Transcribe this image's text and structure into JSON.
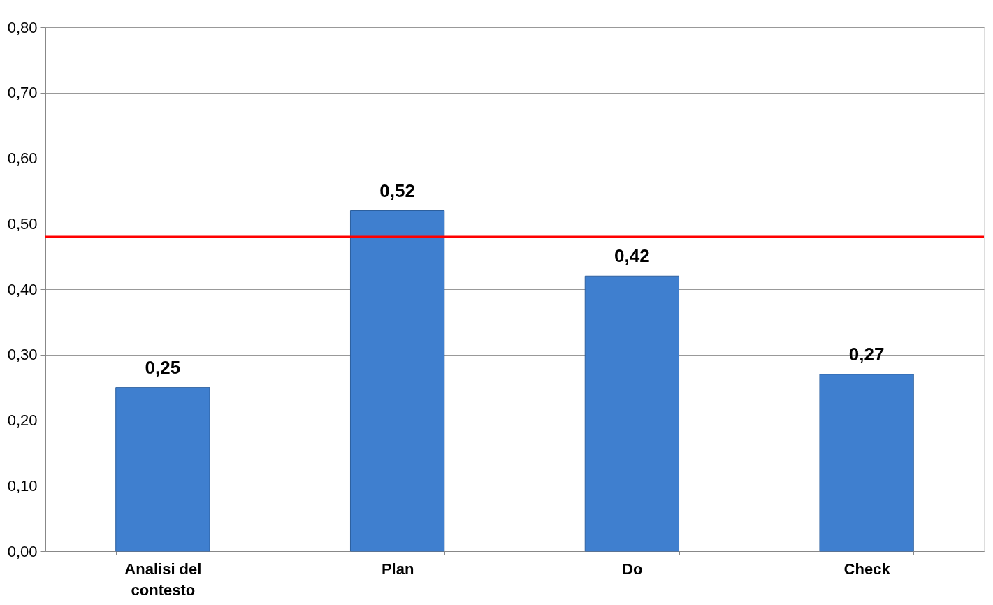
{
  "chart_data": {
    "type": "bar",
    "categories": [
      "Analisi del contesto",
      "Plan",
      "Do",
      "Check"
    ],
    "values": [
      0.25,
      0.52,
      0.42,
      0.27
    ],
    "color": "#3f7fcf",
    "value_labels": [
      "0,25",
      "0,52",
      "0,42",
      "0,27"
    ],
    "ylim": [
      0,
      0.8
    ],
    "yticks": [
      {
        "value": 0,
        "label": "0,00"
      },
      {
        "value": 0.1,
        "label": "0,10"
      },
      {
        "value": 0.2,
        "label": "0,20"
      },
      {
        "value": 0.3,
        "label": "0,30"
      },
      {
        "value": 0.4,
        "label": "0,40"
      },
      {
        "value": 0.5,
        "label": "0,50"
      },
      {
        "value": 0.6,
        "label": "0,60"
      },
      {
        "value": 0.7,
        "label": "0,70"
      },
      {
        "value": 0.8,
        "label": "0,80"
      }
    ],
    "ref_lines": [
      {
        "axis": "y",
        "value": 0.48,
        "color": "#ff0000"
      }
    ],
    "grid": "y"
  }
}
